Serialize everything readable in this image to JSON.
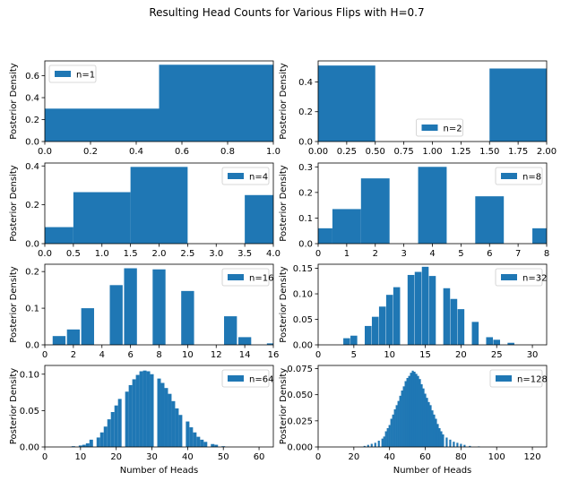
{
  "figure": {
    "title": "Resulting Head Counts for Various Flips with H=0.7",
    "bar_color": "#1f77b4"
  },
  "chart_data": [
    {
      "type": "bar",
      "legend": "n=1",
      "legend_loc": "upper-left",
      "ylabel": "Posterior Density",
      "xlabel": "",
      "xlim": [
        0,
        1
      ],
      "ylim": [
        0,
        0.735
      ],
      "xticks": [
        0.0,
        0.2,
        0.4,
        0.6,
        0.8,
        1.0
      ],
      "xtick_labels": [
        "0.0",
        "0.2",
        "0.4",
        "0.6",
        "0.8",
        "1.0"
      ],
      "yticks": [
        0.0,
        0.2,
        0.4,
        0.6
      ],
      "ytick_labels": [
        "0.0",
        "0.2",
        "0.4",
        "0.6"
      ],
      "bins": [
        [
          0,
          0.5,
          0.3
        ],
        [
          0.5,
          1.0,
          0.7
        ]
      ]
    },
    {
      "type": "bar",
      "legend": "n=2",
      "legend_loc": "lower-center",
      "ylabel": "Posterior Density",
      "xlabel": "",
      "xlim": [
        0,
        2
      ],
      "ylim": [
        0,
        0.541
      ],
      "xticks": [
        0.0,
        0.25,
        0.5,
        0.75,
        1.0,
        1.25,
        1.5,
        1.75,
        2.0
      ],
      "xtick_labels": [
        "0.00",
        "0.25",
        "0.50",
        "0.75",
        "1.00",
        "1.25",
        "1.50",
        "1.75",
        "2.00"
      ],
      "yticks": [
        0.0,
        0.2,
        0.4
      ],
      "ytick_labels": [
        "0.0",
        "0.2",
        "0.4"
      ],
      "bins": [
        [
          0,
          0.5,
          0.51
        ],
        [
          1.5,
          2.0,
          0.49
        ]
      ]
    },
    {
      "type": "bar",
      "legend": "n=4",
      "legend_loc": "upper-right",
      "ylabel": "Posterior Density",
      "xlabel": "",
      "xlim": [
        0,
        4
      ],
      "ylim": [
        0,
        0.415
      ],
      "xticks": [
        0.0,
        0.5,
        1.0,
        1.5,
        2.0,
        2.5,
        3.0,
        3.5,
        4.0
      ],
      "xtick_labels": [
        "0.0",
        "0.5",
        "1.0",
        "1.5",
        "2.0",
        "2.5",
        "3.0",
        "3.5",
        "4.0"
      ],
      "yticks": [
        0.0,
        0.2,
        0.4
      ],
      "ytick_labels": [
        "0.0",
        "0.2",
        "0.4"
      ],
      "bins": [
        [
          0,
          0.5,
          0.085
        ],
        [
          0.5,
          1.5,
          0.265
        ],
        [
          1.5,
          2.5,
          0.395
        ],
        [
          3.5,
          4.0,
          0.25
        ]
      ]
    },
    {
      "type": "bar",
      "legend": "n=8",
      "legend_loc": "upper-right",
      "ylabel": "Posterior Density",
      "xlabel": "",
      "xlim": [
        0,
        8
      ],
      "ylim": [
        0,
        0.315
      ],
      "xticks": [
        0,
        1,
        2,
        3,
        4,
        5,
        6,
        7,
        8
      ],
      "xtick_labels": [
        "0",
        "1",
        "2",
        "3",
        "4",
        "5",
        "6",
        "7",
        "8"
      ],
      "yticks": [
        0.0,
        0.1,
        0.2,
        0.3
      ],
      "ytick_labels": [
        "0.0",
        "0.1",
        "0.2",
        "0.3"
      ],
      "bins": [
        [
          0,
          0.5,
          0.06
        ],
        [
          0.5,
          1.5,
          0.135
        ],
        [
          1.5,
          2.5,
          0.255
        ],
        [
          3.5,
          4.5,
          0.3
        ],
        [
          5.5,
          6.5,
          0.185
        ],
        [
          7.5,
          8.0,
          0.06
        ]
      ]
    },
    {
      "type": "bar",
      "legend": "n=16",
      "legend_loc": "upper-right",
      "ylabel": "Posterior Density",
      "xlabel": "",
      "xlim": [
        0,
        16
      ],
      "ylim": [
        0,
        0.22
      ],
      "xticks": [
        0,
        2,
        4,
        6,
        8,
        10,
        12,
        14,
        16
      ],
      "xtick_labels": [
        "0",
        "2",
        "4",
        "6",
        "8",
        "10",
        "12",
        "14",
        "16"
      ],
      "yticks": [
        0.0,
        0.1,
        0.2
      ],
      "ytick_labels": [
        "0.0",
        "0.1",
        "0.2"
      ],
      "bin_width": 0.9,
      "x": [
        1,
        2,
        3,
        5,
        6,
        8,
        10,
        13,
        14,
        16
      ],
      "values": [
        0.024,
        0.042,
        0.1,
        0.163,
        0.209,
        0.206,
        0.147,
        0.078,
        0.021,
        0.004
      ]
    },
    {
      "type": "bar",
      "legend": "n=32",
      "legend_loc": "upper-right",
      "ylabel": "Posterior Density",
      "xlabel": "",
      "xlim": [
        0,
        32
      ],
      "ylim": [
        0,
        0.158
      ],
      "xticks": [
        0,
        5,
        10,
        15,
        20,
        25,
        30
      ],
      "xtick_labels": [
        "0",
        "5",
        "10",
        "15",
        "20",
        "25",
        "30"
      ],
      "yticks": [
        0.0,
        0.05,
        0.1,
        0.15
      ],
      "ytick_labels": [
        "0.00",
        "0.05",
        "0.10",
        "0.15"
      ],
      "bin_width": 0.95,
      "x": [
        4,
        5,
        7,
        8,
        9,
        10,
        11,
        13,
        14,
        15,
        16,
        18,
        19,
        20,
        22,
        24,
        25,
        27
      ],
      "values": [
        0.013,
        0.018,
        0.037,
        0.055,
        0.075,
        0.098,
        0.113,
        0.137,
        0.143,
        0.153,
        0.135,
        0.111,
        0.09,
        0.07,
        0.045,
        0.015,
        0.01,
        0.004
      ]
    },
    {
      "type": "bar",
      "legend": "n=64",
      "legend_loc": "upper-right",
      "ylabel": "Posterior Density",
      "xlabel": "Number of Heads",
      "xlim": [
        0,
        64
      ],
      "ylim": [
        0,
        0.112
      ],
      "xticks": [
        0,
        10,
        20,
        30,
        40,
        50,
        60
      ],
      "xtick_labels": [
        "0",
        "10",
        "20",
        "30",
        "40",
        "50",
        "60"
      ],
      "yticks": [
        0.0,
        0.05,
        0.1
      ],
      "ytick_labels": [
        "0.00",
        "0.05",
        "0.10"
      ],
      "bin_width": 1.0,
      "x": [
        8,
        10,
        11,
        12,
        13,
        15,
        16,
        17,
        18,
        19,
        20,
        21,
        23,
        24,
        25,
        26,
        27,
        28,
        29,
        30,
        32,
        33,
        34,
        35,
        36,
        37,
        38,
        40,
        41,
        42,
        43,
        44,
        45,
        47,
        48,
        50
      ],
      "values": [
        0.001,
        0.002,
        0.003,
        0.005,
        0.01,
        0.013,
        0.02,
        0.028,
        0.038,
        0.048,
        0.057,
        0.066,
        0.076,
        0.085,
        0.093,
        0.099,
        0.104,
        0.105,
        0.104,
        0.1,
        0.094,
        0.088,
        0.081,
        0.073,
        0.063,
        0.053,
        0.044,
        0.035,
        0.027,
        0.02,
        0.014,
        0.01,
        0.007,
        0.004,
        0.003,
        0.001
      ]
    },
    {
      "type": "bar",
      "legend": "n=128",
      "legend_loc": "upper-right",
      "ylabel": "Posterior Density",
      "xlabel": "Number of Heads",
      "xlim": [
        0,
        128
      ],
      "ylim": [
        0,
        0.078
      ],
      "xticks": [
        0,
        20,
        40,
        60,
        80,
        100,
        120
      ],
      "xtick_labels": [
        "0",
        "20",
        "40",
        "60",
        "80",
        "100",
        "120"
      ],
      "yticks": [
        0.0,
        0.025,
        0.05,
        0.075
      ],
      "ytick_labels": [
        "0.000",
        "0.025",
        "0.050",
        "0.075"
      ],
      "bin_width": 1.1,
      "x": [
        26,
        28,
        30,
        32,
        34,
        36,
        37,
        38,
        39,
        40,
        41,
        42,
        43,
        44,
        45,
        46,
        47,
        48,
        49,
        50,
        51,
        52,
        53,
        54,
        55,
        56,
        57,
        58,
        59,
        60,
        61,
        62,
        63,
        64,
        65,
        66,
        67,
        68,
        69,
        70,
        72,
        74,
        76,
        78,
        80,
        82,
        85,
        90
      ],
      "values": [
        0.001,
        0.002,
        0.003,
        0.004,
        0.006,
        0.008,
        0.01,
        0.015,
        0.018,
        0.021,
        0.027,
        0.031,
        0.036,
        0.04,
        0.044,
        0.049,
        0.054,
        0.058,
        0.063,
        0.066,
        0.068,
        0.071,
        0.073,
        0.072,
        0.07,
        0.068,
        0.065,
        0.06,
        0.056,
        0.051,
        0.047,
        0.043,
        0.04,
        0.035,
        0.031,
        0.027,
        0.022,
        0.018,
        0.015,
        0.012,
        0.009,
        0.007,
        0.005,
        0.004,
        0.003,
        0.002,
        0.001,
        0.0005
      ]
    }
  ]
}
